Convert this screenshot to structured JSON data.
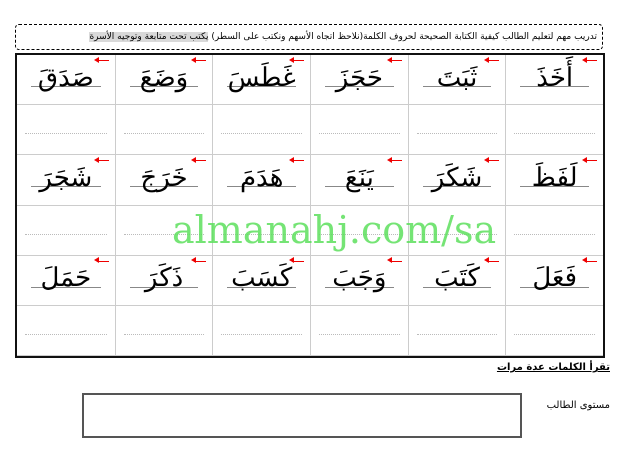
{
  "header": {
    "instruction": "تدريب مهم لتعليم الطالب كيفية الكتابة الصحيحة لحروف الكلمة(نلاحظ اتجاه الأسهم ونكتب على السطر) ",
    "highlight": "يكتب تحت متابعة وتوجيه الأسرة"
  },
  "rows": [
    [
      "أَخَذَ",
      "ثَبَتَ",
      "حَجَزَ",
      "غَطَسَ",
      "وَضَعَ",
      "صَدَقَ"
    ],
    [
      "لَفَظَ",
      "شَكَرَ",
      "يَنَعَ",
      "هَدَمَ",
      "خَرَجَ",
      "شَجَرَ"
    ],
    [
      "فَعَلَ",
      "كَتَبَ",
      "وَجَبَ",
      "كَسَبَ",
      "ذَكَرَ",
      "حَمَلَ"
    ]
  ],
  "watermark": "almanahj.com/sa",
  "footer": {
    "read_instruction": "تقرأ الكلمات عدة مرات",
    "level_label": "مستوى الطالب"
  },
  "colors": {
    "arrow": "#e00000",
    "watermark": "#5de05d",
    "highlight": "#d9d9d9"
  }
}
